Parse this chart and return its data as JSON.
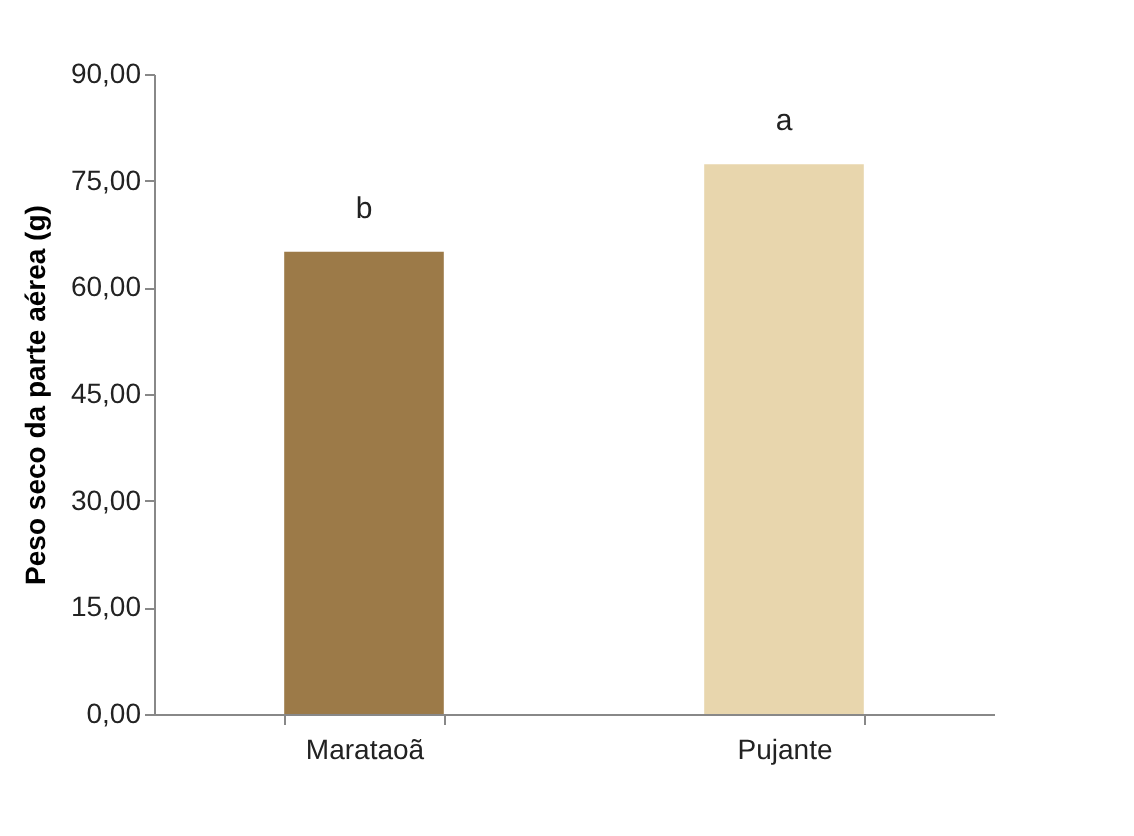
{
  "chart_data": {
    "type": "bar",
    "ylabel": "Peso seco da parte aérea (g)",
    "categories": [
      "Marataoã",
      "Pujante"
    ],
    "values": [
      65.0,
      77.3
    ],
    "colors": [
      "#9c7a48",
      "#e8d6ad"
    ],
    "ylim": [
      0,
      90
    ],
    "yticks": [
      {
        "value": 0,
        "label": "0,00"
      },
      {
        "value": 15,
        "label": "15,00"
      },
      {
        "value": 30,
        "label": "30,00"
      },
      {
        "value": 45,
        "label": "45,00"
      },
      {
        "value": 60,
        "label": "60,00"
      },
      {
        "value": 75,
        "label": "75,00"
      },
      {
        "value": 90,
        "label": "90,00"
      }
    ],
    "annotations": [
      {
        "text": "b",
        "x": "Marataoã",
        "y": 65.0
      },
      {
        "text": "a",
        "x": "Pujante",
        "y": 77.3
      }
    ],
    "grid": false
  }
}
